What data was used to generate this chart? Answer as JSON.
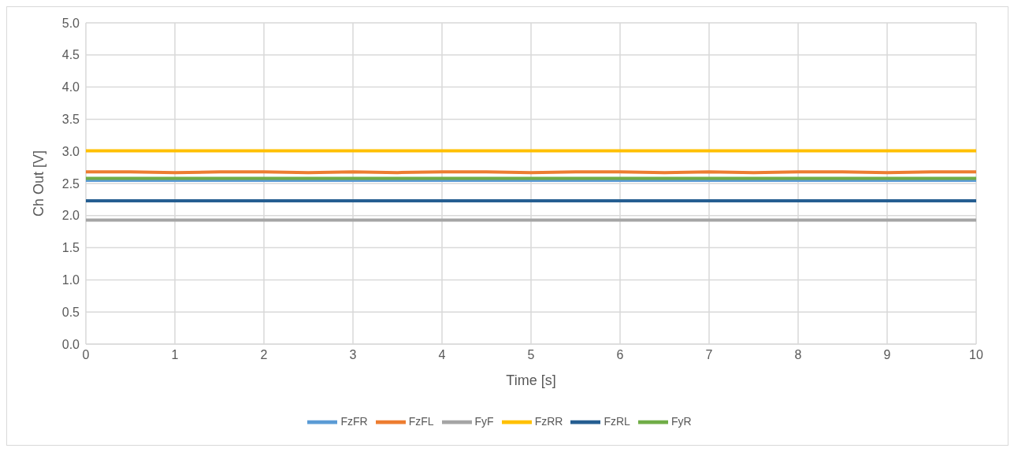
{
  "chart_data": {
    "type": "line",
    "xlabel": "Time [s]",
    "ylabel": "Ch Out [V]",
    "x": [
      0,
      0.5,
      1,
      1.5,
      2,
      2.5,
      3,
      3.5,
      4,
      4.5,
      5,
      5.5,
      6,
      6.5,
      7,
      7.5,
      8,
      8.5,
      9,
      9.5,
      10
    ],
    "series": [
      {
        "name": "FzFR",
        "color": "#5b9bd5",
        "values": [
          2.55,
          2.55,
          2.55,
          2.55,
          2.55,
          2.55,
          2.55,
          2.55,
          2.55,
          2.55,
          2.55,
          2.55,
          2.55,
          2.55,
          2.55,
          2.55,
          2.55,
          2.55,
          2.55,
          2.55,
          2.55
        ]
      },
      {
        "name": "FzFL",
        "color": "#ed7d31",
        "values": [
          2.68,
          2.68,
          2.67,
          2.68,
          2.68,
          2.67,
          2.68,
          2.67,
          2.68,
          2.68,
          2.67,
          2.68,
          2.68,
          2.67,
          2.68,
          2.67,
          2.68,
          2.68,
          2.67,
          2.68,
          2.68
        ]
      },
      {
        "name": "FyF",
        "color": "#a5a5a5",
        "values": [
          1.93,
          1.93,
          1.93,
          1.93,
          1.93,
          1.93,
          1.93,
          1.93,
          1.93,
          1.93,
          1.93,
          1.93,
          1.93,
          1.93,
          1.93,
          1.93,
          1.93,
          1.93,
          1.93,
          1.93,
          1.93
        ]
      },
      {
        "name": "FzRR",
        "color": "#ffc000",
        "values": [
          3.01,
          3.01,
          3.01,
          3.01,
          3.01,
          3.01,
          3.01,
          3.01,
          3.01,
          3.01,
          3.01,
          3.01,
          3.01,
          3.01,
          3.01,
          3.01,
          3.01,
          3.01,
          3.01,
          3.01,
          3.01
        ]
      },
      {
        "name": "FzRL",
        "color": "#255e91",
        "values": [
          2.23,
          2.23,
          2.23,
          2.23,
          2.23,
          2.23,
          2.23,
          2.23,
          2.23,
          2.23,
          2.23,
          2.23,
          2.23,
          2.23,
          2.23,
          2.23,
          2.23,
          2.23,
          2.23,
          2.23,
          2.23
        ]
      },
      {
        "name": "FyR",
        "color": "#70ad47",
        "values": [
          2.58,
          2.58,
          2.58,
          2.58,
          2.58,
          2.58,
          2.58,
          2.58,
          2.58,
          2.58,
          2.58,
          2.58,
          2.58,
          2.58,
          2.58,
          2.58,
          2.58,
          2.58,
          2.58,
          2.58,
          2.58
        ]
      }
    ],
    "xlim": [
      0,
      10
    ],
    "xticks": [
      0,
      1,
      2,
      3,
      4,
      5,
      6,
      7,
      8,
      9,
      10
    ],
    "ylim": [
      0,
      5
    ],
    "yticks": [
      {
        "value": 0,
        "label": "0.0"
      },
      {
        "value": 0.5,
        "label": "0.5"
      },
      {
        "value": 1,
        "label": "1.0"
      },
      {
        "value": 1.5,
        "label": "1.5"
      },
      {
        "value": 2,
        "label": "2.0"
      },
      {
        "value": 2.5,
        "label": "2.5"
      },
      {
        "value": 3,
        "label": "3.0"
      },
      {
        "value": 3.5,
        "label": "3.5"
      },
      {
        "value": 4,
        "label": "4.0"
      },
      {
        "value": 4.5,
        "label": "4.5"
      },
      {
        "value": 5,
        "label": "5.0"
      }
    ],
    "grid": true,
    "legend": "bottom",
    "marker": "none",
    "line_style": "solid"
  }
}
